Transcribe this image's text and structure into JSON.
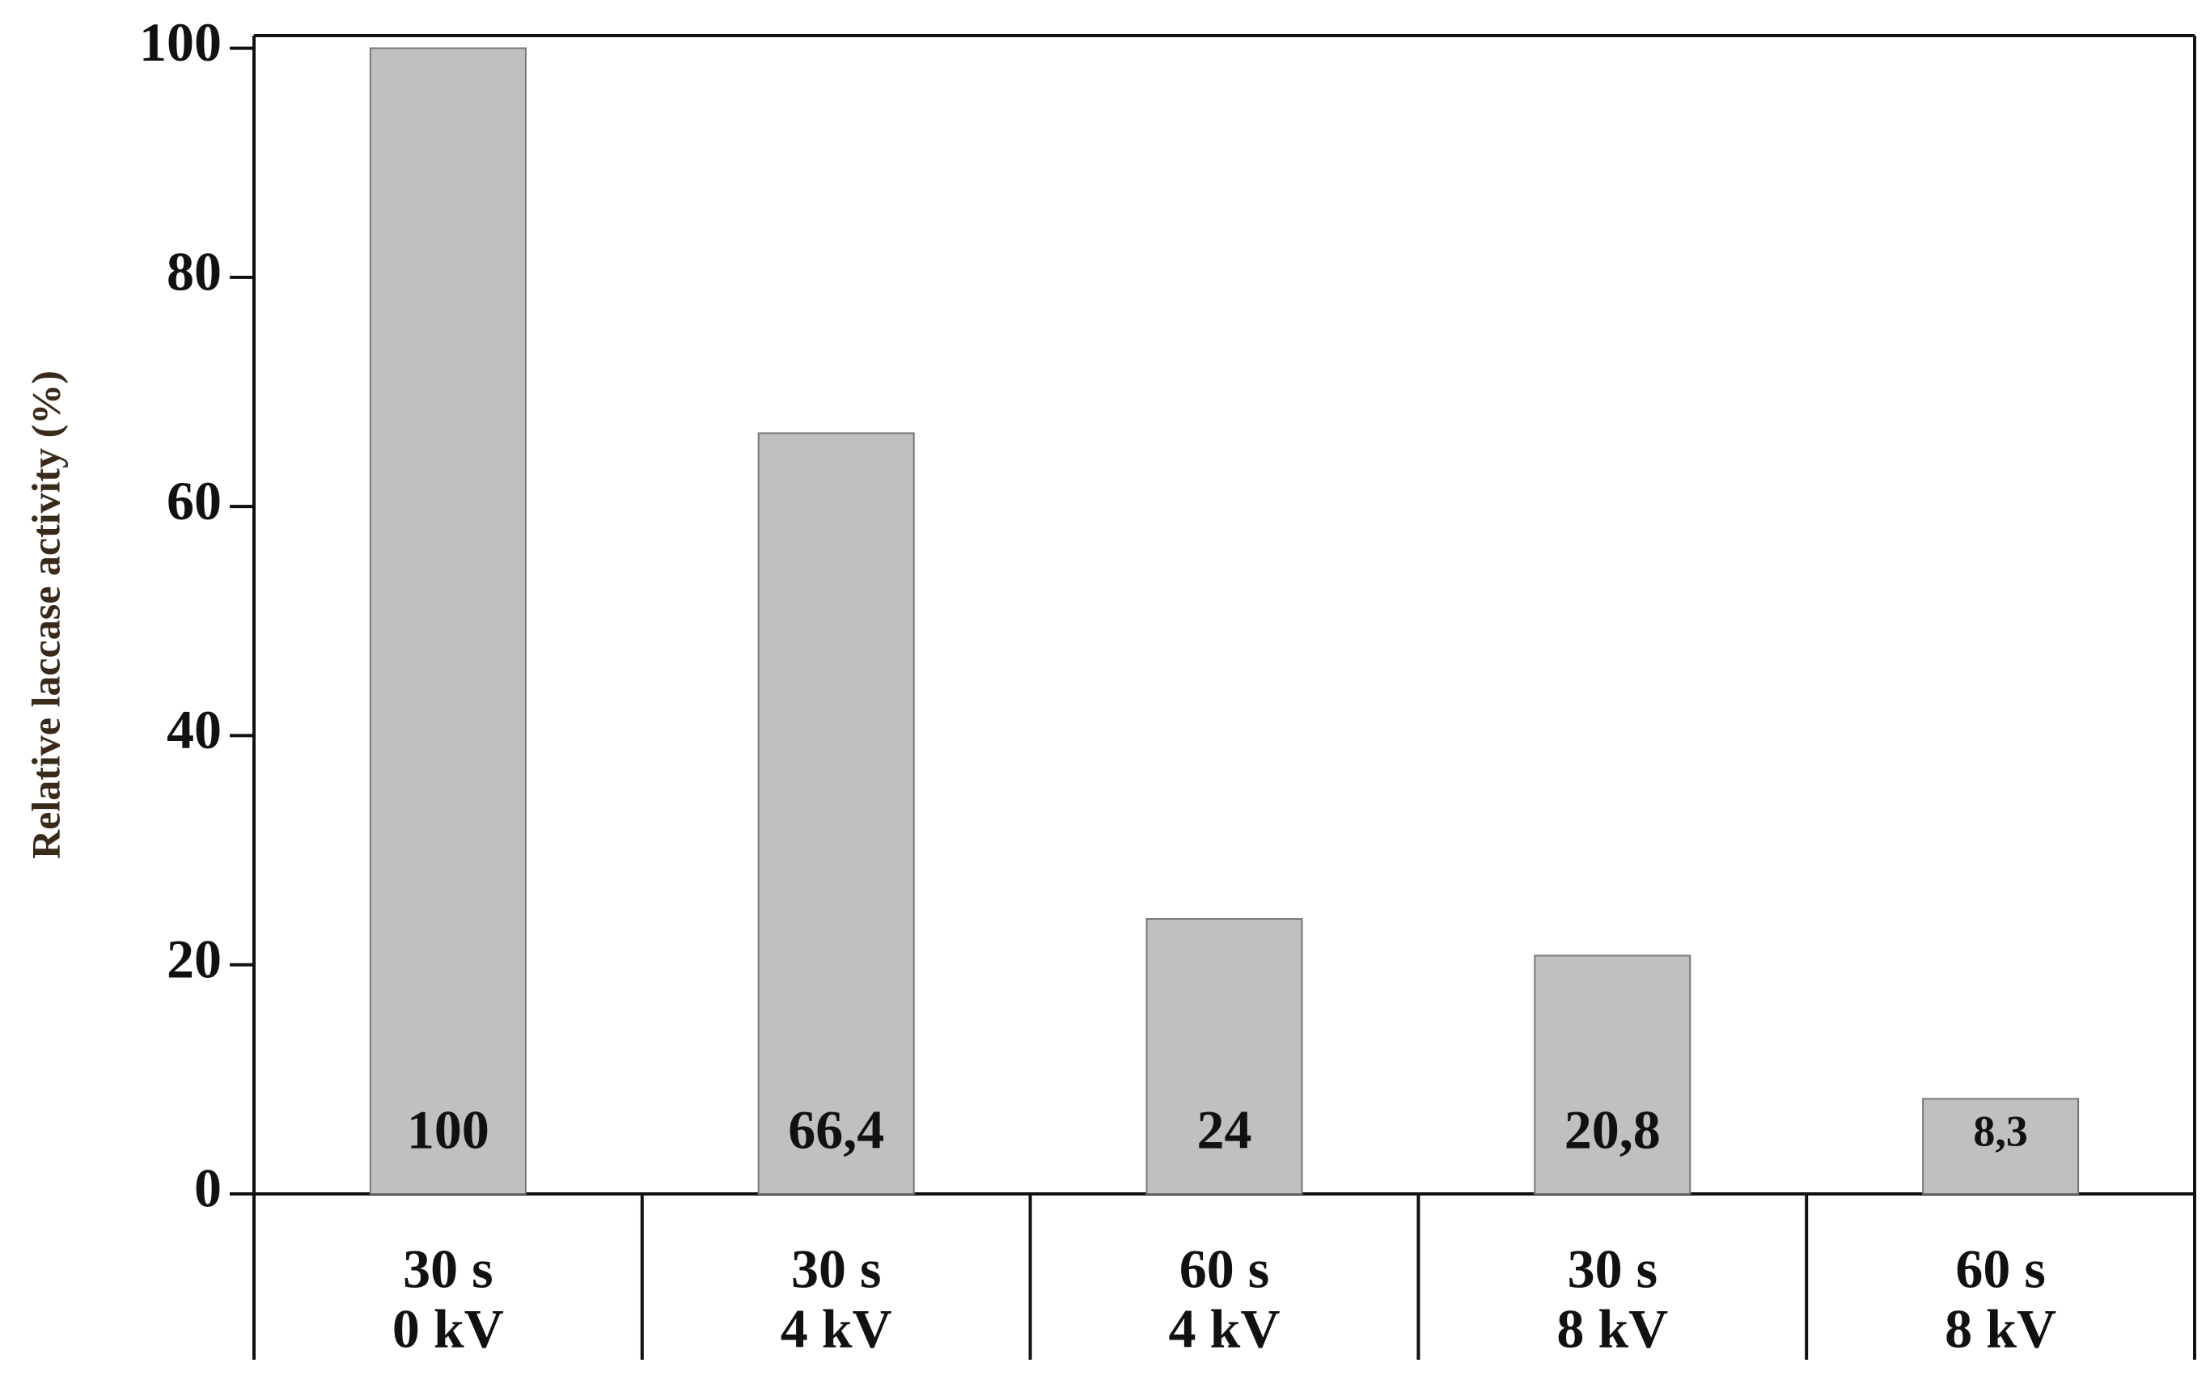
{
  "chart_data": {
    "type": "bar",
    "y_label": "Relative laccase activity (%)",
    "categories": [
      [
        "30 s",
        "0 kV"
      ],
      [
        "30 s",
        "4 kV"
      ],
      [
        "60 s",
        "4 kV"
      ],
      [
        "30 s",
        "8 kV"
      ],
      [
        "60 s",
        "8 kV"
      ]
    ],
    "values": [
      100,
      66.4,
      24,
      20.8,
      8.3
    ],
    "value_labels": [
      "100",
      "66,4",
      "24",
      "20,8",
      "8,3"
    ],
    "color": "#c0c0c0",
    "ylim": [
      0,
      101.1
    ],
    "yticks": [
      0,
      20,
      40,
      60,
      80,
      100
    ],
    "grid": false
  }
}
